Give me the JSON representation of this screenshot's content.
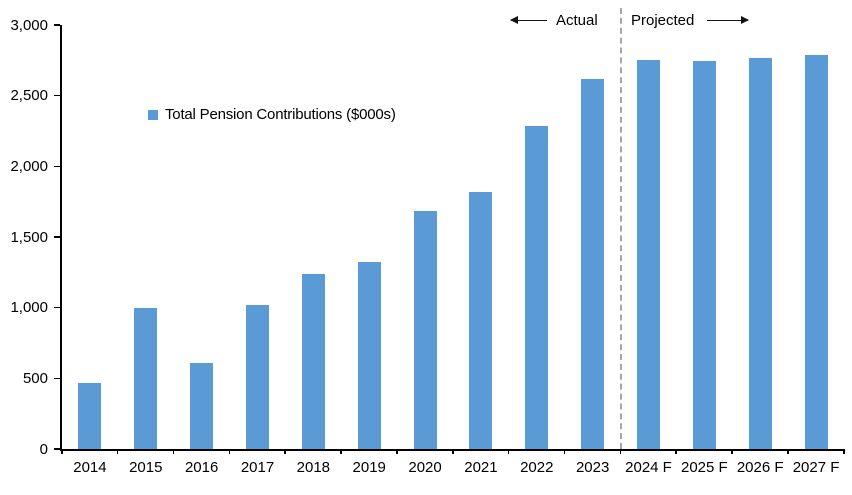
{
  "chart_data": {
    "type": "bar",
    "title": "",
    "categories": [
      "2014",
      "2015",
      "2016",
      "2017",
      "2018",
      "2019",
      "2020",
      "2021",
      "2022",
      "2023",
      "2024 F",
      "2025 F",
      "2026 F",
      "2027 F"
    ],
    "values": [
      470,
      995,
      605,
      1020,
      1235,
      1320,
      1685,
      1820,
      2285,
      2615,
      2755,
      2745,
      2765,
      2790
    ],
    "series_name": "Total Pension Contributions ($000s)",
    "ylim": [
      0,
      3000
    ],
    "ytick_step": 500,
    "ytick_labels": [
      "0",
      "500",
      "1,000",
      "1,500",
      "2,000",
      "2,500",
      "3,000"
    ],
    "grid": false,
    "legend_position": "inside-upper-left",
    "bar_color": "#5B9BD5",
    "divider": {
      "after_category": "2023",
      "boundary_index": 10,
      "style": "dashed",
      "color": "#A6A6A6"
    },
    "annotations": {
      "left_of_divider": "Actual",
      "right_of_divider": "Projected"
    }
  },
  "legend": {
    "label": "Total Pension Contributions ($000s)",
    "swatch_color": "#5B9BD5"
  },
  "annotations": {
    "actual_label": "Actual",
    "projected_label": "Projected"
  },
  "colors": {
    "bar": "#5B9BD5",
    "axis": "#000000",
    "divider": "#A6A6A6",
    "text": "#000000",
    "background": "#FFFFFF"
  }
}
